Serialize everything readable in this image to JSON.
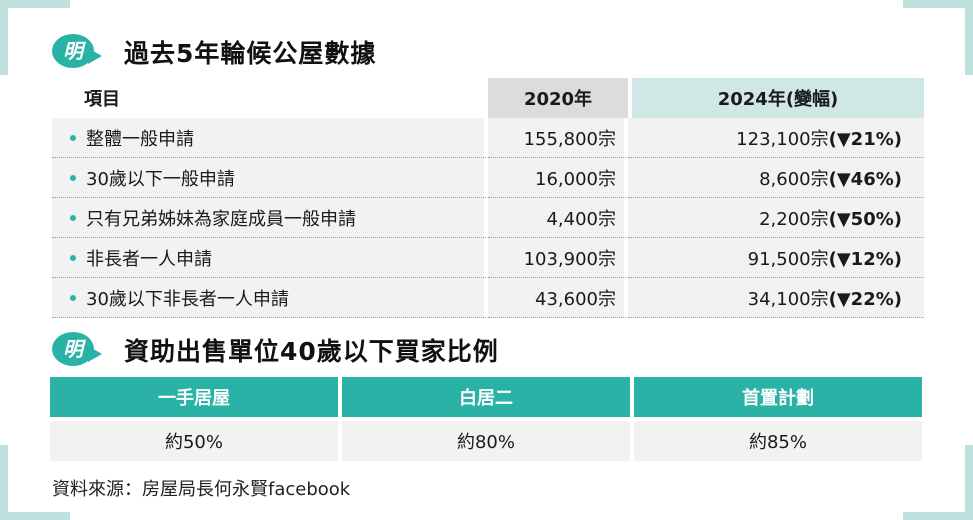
{
  "section1": {
    "badge_char": "明",
    "title": "過去5年輪候公屋數據",
    "headers": {
      "item": "項目",
      "year2020": "2020年",
      "year2024": "2024年(變幅)"
    },
    "rows": [
      {
        "item": "整體一般申請",
        "v2020": "155,800宗",
        "v2024": "123,100宗",
        "change": "(▼21%)"
      },
      {
        "item": "30歲以下一般申請",
        "v2020": "16,000宗",
        "v2024": "8,600宗",
        "change": "(▼46%)"
      },
      {
        "item": "只有兄弟姊妹為家庭成員一般申請",
        "v2020": "4,400宗",
        "v2024": "2,200宗",
        "change": "(▼50%)"
      },
      {
        "item": "非長者一人申請",
        "v2020": "103,900宗",
        "v2024": "91,500宗",
        "change": "(▼12%)"
      },
      {
        "item": "30歲以下非長者一人申請",
        "v2020": "43,600宗",
        "v2024": "34,100宗",
        "change": "(▼22%)"
      }
    ]
  },
  "section2": {
    "badge_char": "明",
    "title": "資助出售單位40歲以下買家比例",
    "columns": [
      {
        "header": "一手居屋",
        "value": "約50%"
      },
      {
        "header": "白居二",
        "value": "約80%"
      },
      {
        "header": "首置計劃",
        "value": "約85%"
      }
    ]
  },
  "source": "資料來源：房屋局長何永賢facebook",
  "colors": {
    "accent": "#2bb2a6",
    "frame": "#bfe1de",
    "header_grey": "#dcdcdc",
    "header_teal": "#cfe8e6",
    "cell_bg": "#f2f2f2"
  }
}
